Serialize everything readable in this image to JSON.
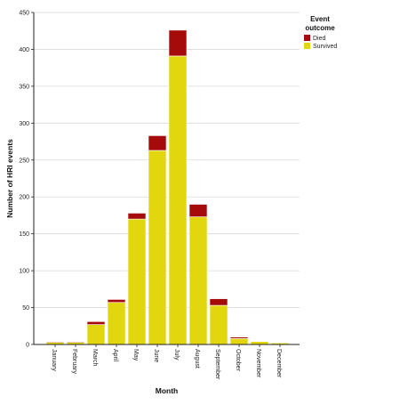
{
  "chart_data": {
    "type": "bar",
    "stacked": true,
    "categories": [
      "January",
      "February",
      "March",
      "April",
      "May",
      "June",
      "July",
      "August",
      "September",
      "October",
      "November",
      "December"
    ],
    "series": [
      {
        "name": "Survived",
        "color": "#e2d60e",
        "values": [
          3,
          3,
          27,
          57,
          170,
          263,
          391,
          173,
          53,
          8,
          4,
          2
        ]
      },
      {
        "name": "Died",
        "color": "#a50b0b",
        "values": [
          1,
          1,
          4,
          4,
          8,
          20,
          35,
          17,
          9,
          2,
          0,
          0
        ]
      }
    ],
    "xlabel": "Month",
    "ylabel": "Number of HRI events",
    "ylim": [
      0,
      450
    ],
    "yticks": [
      0,
      50,
      100,
      150,
      200,
      250,
      300,
      350,
      400,
      450
    ],
    "grid": true,
    "legend": {
      "title_lines": [
        "Event",
        "outcome"
      ],
      "placement": "top-right",
      "entries": [
        "Died",
        "Survived"
      ]
    }
  }
}
